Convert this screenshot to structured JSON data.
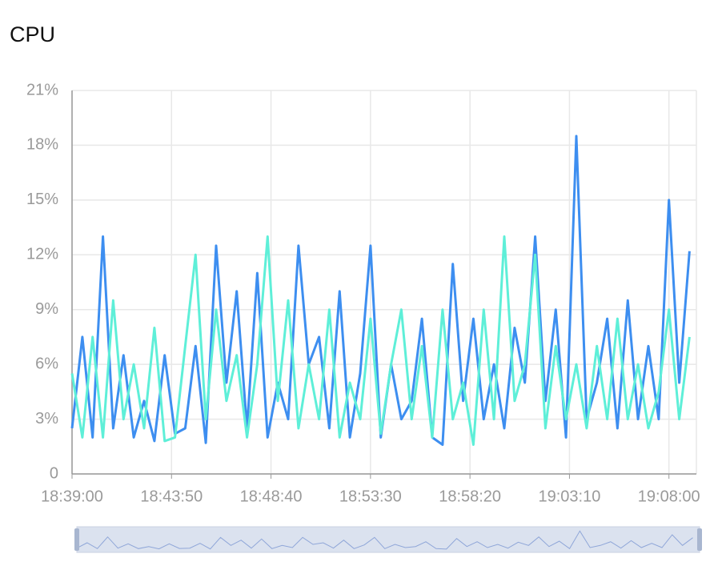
{
  "chart_data": {
    "type": "line",
    "title": "CPU",
    "x": [
      "18:39:00",
      "18:39:30",
      "18:40:00",
      "18:40:30",
      "18:41:00",
      "18:41:30",
      "18:42:00",
      "18:42:30",
      "18:43:00",
      "18:43:30",
      "18:44:00",
      "18:44:30",
      "18:45:00",
      "18:45:30",
      "18:46:00",
      "18:46:30",
      "18:47:00",
      "18:47:30",
      "18:48:00",
      "18:48:30",
      "18:49:00",
      "18:49:30",
      "18:50:00",
      "18:50:30",
      "18:51:00",
      "18:51:30",
      "18:52:00",
      "18:52:30",
      "18:53:00",
      "18:53:30",
      "18:54:00",
      "18:54:30",
      "18:55:00",
      "18:55:30",
      "18:56:00",
      "18:56:30",
      "18:57:00",
      "18:57:30",
      "18:58:00",
      "18:58:30",
      "18:59:00",
      "18:59:30",
      "19:00:00",
      "19:00:30",
      "19:01:00",
      "19:01:30",
      "19:02:00",
      "19:02:30",
      "19:03:00",
      "19:03:30",
      "19:04:00",
      "19:04:30",
      "19:05:00",
      "19:05:30",
      "19:06:00",
      "19:06:30",
      "19:07:00",
      "19:07:30",
      "19:08:00",
      "19:08:30",
      "19:09:00"
    ],
    "series": [
      {
        "color": "#3d8ef0",
        "values": [
          2.5,
          7.5,
          2,
          13,
          2.5,
          6.5,
          2,
          4,
          1.8,
          6.5,
          2.2,
          2.5,
          7,
          1.7,
          12.5,
          5,
          10,
          2.5,
          11,
          2,
          5,
          3,
          12.5,
          6,
          7.5,
          2.5,
          10,
          2,
          5.5,
          12.5,
          2,
          6,
          3,
          4,
          8.5,
          2,
          1.6,
          11.5,
          4,
          8.5,
          3,
          6,
          2.5,
          8,
          5,
          13,
          4,
          9,
          2,
          18.5,
          3,
          5,
          8.5,
          2.5,
          9.5,
          3,
          7,
          3,
          15,
          5,
          12.2
        ]
      },
      {
        "color": "#5eefd8",
        "values": [
          5.5,
          2,
          7.5,
          2,
          9.5,
          3,
          6,
          2.5,
          8,
          1.8,
          2,
          7,
          12,
          3,
          9,
          4,
          6.5,
          2,
          6,
          13,
          4,
          9.5,
          2.5,
          6,
          3,
          9,
          2,
          5,
          3,
          8.5,
          2.2,
          6,
          9,
          3,
          7,
          2,
          9,
          3,
          5,
          1.6,
          9,
          3,
          13,
          4,
          6,
          12,
          2.5,
          7,
          3,
          6,
          2.5,
          7,
          3,
          8.5,
          3,
          6,
          2.5,
          4.5,
          9,
          3,
          7.5
        ]
      }
    ],
    "xlim": [
      "18:39:00",
      "19:09:20"
    ],
    "xticks": [
      "18:39:00",
      "18:43:50",
      "18:48:40",
      "18:53:30",
      "18:58:20",
      "19:03:10",
      "19:08:00"
    ],
    "ylim": [
      0,
      21
    ],
    "yticks": [
      0,
      {
        "value": 3,
        "label": "3%"
      },
      {
        "value": 6,
        "label": "6%"
      },
      {
        "value": 9,
        "label": "9%"
      },
      {
        "value": 12,
        "label": "12%"
      },
      {
        "value": 15,
        "label": "15%"
      },
      {
        "value": 18,
        "label": "18%"
      },
      {
        "value": 21,
        "label": "21%"
      }
    ],
    "grid": true
  }
}
